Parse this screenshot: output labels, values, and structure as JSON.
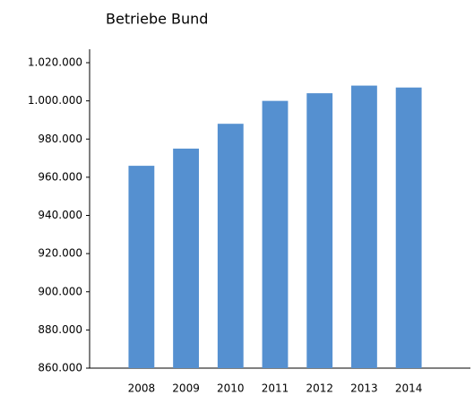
{
  "chart_data": {
    "type": "bar",
    "title": "Betriebe Bund",
    "categories": [
      "2008",
      "2009",
      "2010",
      "2011",
      "2012",
      "2013",
      "2014"
    ],
    "values": [
      966000,
      975000,
      988000,
      1000000,
      1004000,
      1008000,
      1007000
    ],
    "color": "#5590d0",
    "ylim": [
      860000,
      1020000
    ],
    "yticks": [
      {
        "value": 860000,
        "label": "860.000"
      },
      {
        "value": 880000,
        "label": "880.000"
      },
      {
        "value": 900000,
        "label": "900.000"
      },
      {
        "value": 920000,
        "label": "920.000"
      },
      {
        "value": 940000,
        "label": "940.000"
      },
      {
        "value": 960000,
        "label": "960.000"
      },
      {
        "value": 980000,
        "label": "980.000"
      },
      {
        "value": 1000000,
        "label": "1.000.000"
      },
      {
        "value": 1020000,
        "label": "1.020.000"
      }
    ],
    "grid": false
  }
}
